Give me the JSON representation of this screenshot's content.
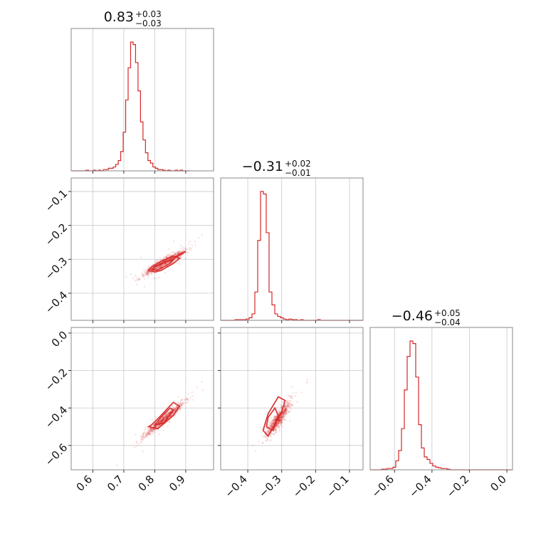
{
  "chart_data": {
    "type": "corner",
    "parameters": [
      {
        "range": [
          0.53,
          0.99
        ],
        "ticks": [
          0.6,
          0.7,
          0.8,
          0.9
        ],
        "tick_labels": [
          "0.6",
          "0.7",
          "0.8",
          "0.9"
        ],
        "title": {
          "median": "0.83",
          "plus": "+0.03",
          "minus": "−0.03"
        },
        "histogram": {
          "x_start": 0.53,
          "bin_width": 0.008,
          "counts": [
            0,
            0,
            0,
            0,
            0,
            0,
            0.5,
            0,
            0,
            0.5,
            0,
            0.5,
            0,
            1,
            1,
            2,
            2,
            3,
            5,
            8,
            15,
            30,
            55,
            80,
            100,
            98,
            84,
            62,
            38,
            24,
            14,
            8,
            6,
            3,
            2,
            1,
            1,
            0.5,
            0,
            0.5,
            0,
            0,
            0.5,
            0,
            0.5,
            0,
            0,
            0
          ]
        }
      },
      {
        "range": [
          -0.48,
          -0.06
        ],
        "ticks": [
          -0.4,
          -0.3,
          -0.2,
          -0.1
        ],
        "tick_labels": [
          "−0.4",
          "−0.3",
          "−0.2",
          "−0.1"
        ],
        "title": {
          "median": "−0.31",
          "plus": "+0.02",
          "minus": "−0.01"
        },
        "histogram": {
          "x_start": -0.48,
          "bin_width": 0.0084,
          "counts": [
            0,
            0,
            0,
            0,
            0,
            0.5,
            0.5,
            0.5,
            0.5,
            1,
            2,
            5,
            22,
            62,
            100,
            98,
            68,
            22,
            12,
            5,
            3,
            2,
            1,
            0.5,
            1,
            0.5,
            0.5,
            0,
            0.5,
            0,
            0,
            0,
            0,
            0,
            0.5,
            0,
            0,
            0,
            0,
            0,
            0,
            0,
            0,
            0,
            0,
            0,
            0,
            0,
            0,
            0
          ]
        }
      },
      {
        "range": [
          -0.73,
          0.03
        ],
        "ticks": [
          -0.6,
          -0.4,
          -0.2,
          0.0
        ],
        "tick_labels": [
          "−0.6",
          "−0.4",
          "−0.2",
          "0.0"
        ],
        "title": {
          "median": "−0.46",
          "plus": "+0.05",
          "minus": "−0.04"
        },
        "histogram": {
          "x_start": -0.73,
          "bin_width": 0.0152,
          "counts": [
            0,
            0,
            0,
            0,
            0.5,
            0.5,
            1,
            1,
            2,
            7,
            15,
            32,
            62,
            88,
            100,
            98,
            72,
            35,
            17,
            10,
            8,
            5,
            3,
            2,
            1.5,
            1,
            1,
            0.5,
            0,
            0,
            0,
            0,
            0,
            0,
            0,
            0,
            0,
            0,
            0,
            0,
            0,
            0,
            0,
            0,
            0,
            0,
            0,
            0,
            0,
            0
          ]
        }
      }
    ],
    "scatter": {
      "mean": [
        0.83,
        -0.31,
        -0.46
      ],
      "sd": [
        0.032,
        0.018,
        0.045
      ],
      "corr": {
        "p1p0": 0.93,
        "p2p0": 0.97,
        "p2p1": 0.9
      }
    },
    "contours": {
      "p1p0": [
        {
          "x": [
            0.78,
            0.8,
            0.82,
            0.86,
            0.88,
            0.86,
            0.82,
            0.79,
            0.78
          ],
          "y": [
            -0.333,
            -0.337,
            -0.333,
            -0.312,
            -0.297,
            -0.29,
            -0.306,
            -0.322,
            -0.333
          ]
        },
        {
          "x": [
            0.79,
            0.81,
            0.85,
            0.86,
            0.83,
            0.8,
            0.79
          ],
          "y": [
            -0.33,
            -0.332,
            -0.312,
            -0.302,
            -0.308,
            -0.322,
            -0.33
          ]
        },
        {
          "x": [
            0.86,
            0.89,
            0.9,
            0.88,
            0.86
          ],
          "y": [
            -0.298,
            -0.283,
            -0.276,
            -0.284,
            -0.298
          ]
        }
      ],
      "p2p0": [
        {
          "x": [
            0.78,
            0.81,
            0.86,
            0.88,
            0.86,
            0.82,
            0.79,
            0.78
          ],
          "y": [
            -0.5,
            -0.51,
            -0.44,
            -0.39,
            -0.37,
            -0.44,
            -0.49,
            -0.5
          ]
        },
        {
          "x": [
            0.8,
            0.83,
            0.86,
            0.85,
            0.82,
            0.8
          ],
          "y": [
            -0.49,
            -0.48,
            -0.41,
            -0.4,
            -0.45,
            -0.49
          ]
        }
      ],
      "p2p1": [
        {
          "x": [
            -0.355,
            -0.34,
            -0.3,
            -0.29,
            -0.31,
            -0.34,
            -0.355
          ],
          "y": [
            -0.52,
            -0.55,
            -0.42,
            -0.36,
            -0.34,
            -0.43,
            -0.52
          ]
        },
        {
          "x": [
            -0.345,
            -0.325,
            -0.31,
            -0.32,
            -0.34,
            -0.345
          ],
          "y": [
            -0.5,
            -0.52,
            -0.44,
            -0.4,
            -0.45,
            -0.5
          ]
        }
      ]
    }
  }
}
